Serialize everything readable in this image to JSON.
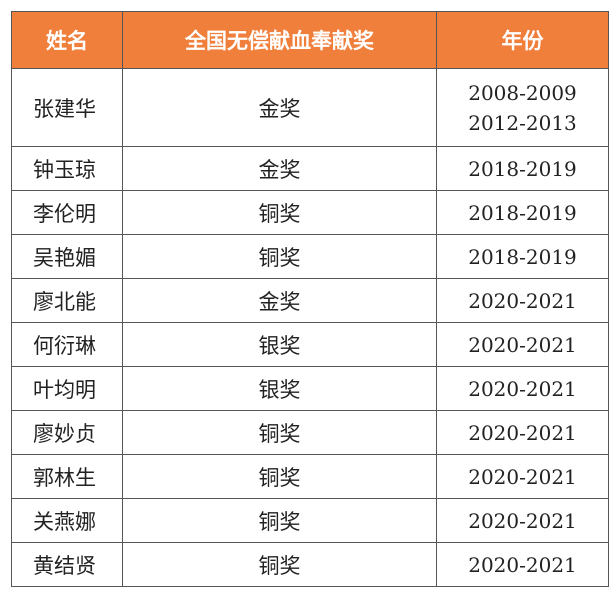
{
  "header": {
    "name": "姓名",
    "award": "全国无偿献血奉献奖",
    "year": "年份"
  },
  "rows": [
    {
      "name": "张建华",
      "award": "金奖",
      "years": [
        "2008-2009",
        "2012-2013"
      ]
    },
    {
      "name": "钟玉琼",
      "award": "金奖",
      "years": [
        "2018-2019"
      ]
    },
    {
      "name": "李伦明",
      "award": "铜奖",
      "years": [
        "2018-2019"
      ]
    },
    {
      "name": "吴艳媚",
      "award": "铜奖",
      "years": [
        "2018-2019"
      ]
    },
    {
      "name": "廖北能",
      "award": "金奖",
      "years": [
        "2020-2021"
      ]
    },
    {
      "name": "何衍琳",
      "award": "银奖",
      "years": [
        "2020-2021"
      ]
    },
    {
      "name": "叶均明",
      "award": "银奖",
      "years": [
        "2020-2021"
      ]
    },
    {
      "name": "廖妙贞",
      "award": "铜奖",
      "years": [
        "2020-2021"
      ]
    },
    {
      "name": "郭林生",
      "award": "铜奖",
      "years": [
        "2020-2021"
      ]
    },
    {
      "name": "关燕娜",
      "award": "铜奖",
      "years": [
        "2020-2021"
      ]
    },
    {
      "name": "黄结贤",
      "award": "铜奖",
      "years": [
        "2020-2021"
      ]
    }
  ],
  "colors": {
    "header_background": "#f07f3c",
    "header_text": "#ffffff",
    "grid_line": "#555555"
  }
}
